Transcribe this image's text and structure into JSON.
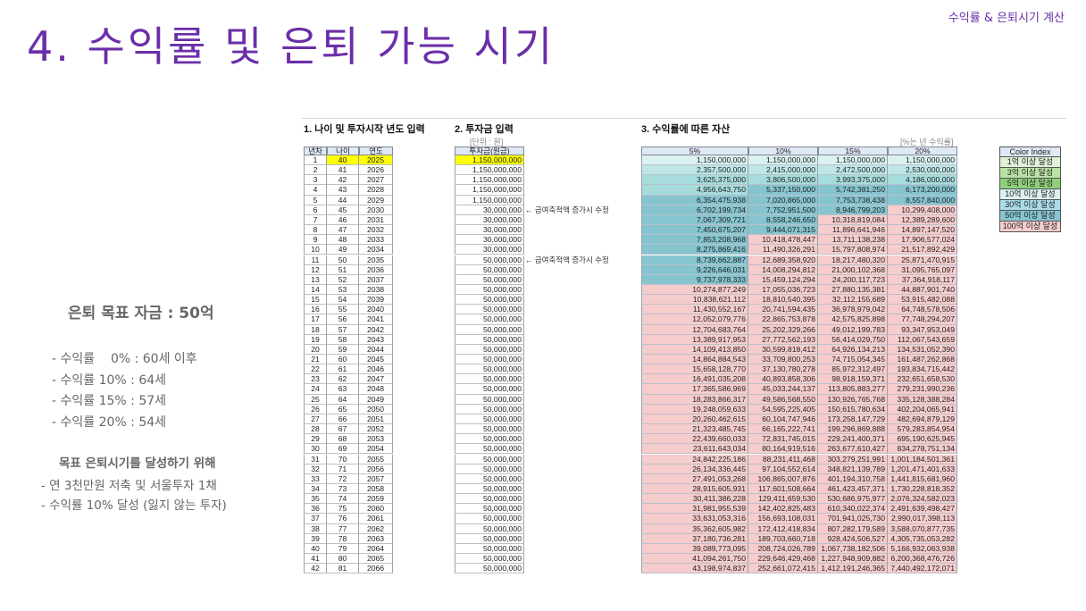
{
  "slide": {
    "title": "4. 수익률 및 은퇴 가능 시기",
    "top_label": "수익률 & 은퇴시기 계산"
  },
  "notes": {
    "goal_title": "은퇴 목표 자금 : 50억",
    "rates": [
      "- 수익률    0% : 60세 이후",
      "- 수익률 10% : 64세",
      "- 수익률 15% : 57세",
      "- 수익률 20% : 54세"
    ],
    "plan_title": "목표 은퇴시기를 달성하기 위해",
    "plan_items": [
      "- 연 3천만원 저축 및 서울투자 1채",
      "- 수익률 10% 달성 (잃지 않는 투자)"
    ]
  },
  "sheet": {
    "section1": "1. 나이 및 투자시작 년도 입력",
    "section2": "2. 투자금 입력",
    "section3": "3. 수익률에 따른 자산",
    "unit_note": "[단위 : 원]",
    "rate_note": "[%는 년 수익률]",
    "col_headers": [
      "년차",
      "나이",
      "연도",
      "투자금(원금)",
      "5%",
      "10%",
      "15%",
      "20%"
    ],
    "arrow_notes": [
      {
        "row": 5,
        "text": "← 급여축적액 증가시 수정"
      },
      {
        "row": 10,
        "text": "← 급여축적액 증가시 수정"
      }
    ],
    "colors": {
      "start": "#ffff00",
      "c1": "#dcf1f1",
      "c3": "#bfe6e6",
      "c5": "#a7dcdc",
      "c10": "#8fd1d6",
      "c30": "#a9dcea",
      "c50": "#86c5d0",
      "c100": "#f6cccc"
    },
    "rows": [
      [
        "1",
        "40",
        "2025",
        "1,150,000,000",
        "1,150,000,000",
        "1,150,000,000",
        "1,150,000,000",
        "1,150,000,000"
      ],
      [
        "2",
        "41",
        "2026",
        "1,150,000,000",
        "2,357,500,000",
        "2,415,000,000",
        "2,472,500,000",
        "2,530,000,000"
      ],
      [
        "3",
        "42",
        "2027",
        "1,150,000,000",
        "3,625,375,000",
        "3,806,500,000",
        "3,993,375,000",
        "4,186,000,000"
      ],
      [
        "4",
        "43",
        "2028",
        "1,150,000,000",
        "4,956,643,750",
        "5,337,150,000",
        "5,742,381,250",
        "6,173,200,000"
      ],
      [
        "5",
        "44",
        "2029",
        "1,150,000,000",
        "6,354,475,938",
        "7,020,865,000",
        "7,753,738,438",
        "8,557,840,000"
      ],
      [
        "6",
        "45",
        "2030",
        "30,000,000",
        "6,702,199,734",
        "7,752,951,500",
        "8,946,799,203",
        "10,299,408,000"
      ],
      [
        "7",
        "46",
        "2031",
        "30,000,000",
        "7,067,309,721",
        "8,558,246,650",
        "10,318,819,084",
        "12,389,289,600"
      ],
      [
        "8",
        "47",
        "2032",
        "30,000,000",
        "7,450,675,207",
        "9,444,071,315",
        "11,896,641,946",
        "14,897,147,520"
      ],
      [
        "9",
        "48",
        "2033",
        "30,000,000",
        "7,853,208,968",
        "10,418,478,447",
        "13,711,138,238",
        "17,906,577,024"
      ],
      [
        "10",
        "49",
        "2034",
        "30,000,000",
        "8,275,869,416",
        "11,490,326,291",
        "15,797,808,974",
        "21,517,892,429"
      ],
      [
        "11",
        "50",
        "2035",
        "50,000,000",
        "8,739,662,887",
        "12,689,358,920",
        "18,217,480,320",
        "25,871,470,915"
      ],
      [
        "12",
        "51",
        "2036",
        "50,000,000",
        "9,226,646,031",
        "14,008,294,812",
        "21,000,102,368",
        "31,095,765,097"
      ],
      [
        "13",
        "52",
        "2037",
        "50,000,000",
        "9,737,978,333",
        "15,459,124,294",
        "24,200,117,723",
        "37,364,918,117"
      ],
      [
        "14",
        "53",
        "2038",
        "50,000,000",
        "10,274,877,249",
        "17,055,036,723",
        "27,880,135,381",
        "44,887,901,740"
      ],
      [
        "15",
        "54",
        "2039",
        "50,000,000",
        "10,838,621,112",
        "18,810,540,395",
        "32,112,155,689",
        "53,915,482,088"
      ],
      [
        "16",
        "55",
        "2040",
        "50,000,000",
        "11,430,552,167",
        "20,741,594,435",
        "36,978,979,042",
        "64,748,578,506"
      ],
      [
        "17",
        "56",
        "2041",
        "50,000,000",
        "12,052,079,776",
        "22,865,753,878",
        "42,575,825,898",
        "77,748,294,207"
      ],
      [
        "18",
        "57",
        "2042",
        "50,000,000",
        "12,704,683,764",
        "25,202,329,266",
        "49,012,199,783",
        "93,347,953,049"
      ],
      [
        "19",
        "58",
        "2043",
        "50,000,000",
        "13,389,917,953",
        "27,772,562,193",
        "56,414,029,750",
        "112,067,543,659"
      ],
      [
        "20",
        "59",
        "2044",
        "50,000,000",
        "14,109,413,850",
        "30,599,818,412",
        "64,926,134,213",
        "134,531,052,390"
      ],
      [
        "21",
        "60",
        "2045",
        "50,000,000",
        "14,864,884,543",
        "33,709,800,253",
        "74,715,054,345",
        "161,487,262,868"
      ],
      [
        "22",
        "61",
        "2046",
        "50,000,000",
        "15,658,128,770",
        "37,130,780,278",
        "85,972,312,497",
        "193,834,715,442"
      ],
      [
        "23",
        "62",
        "2047",
        "50,000,000",
        "16,491,035,208",
        "40,893,858,306",
        "98,918,159,371",
        "232,651,658,530"
      ],
      [
        "24",
        "63",
        "2048",
        "50,000,000",
        "17,365,586,969",
        "45,033,244,137",
        "113,805,883,277",
        "279,231,990,236"
      ],
      [
        "25",
        "64",
        "2049",
        "50,000,000",
        "18,283,866,317",
        "49,586,568,550",
        "130,926,765,768",
        "335,128,388,284"
      ],
      [
        "26",
        "65",
        "2050",
        "50,000,000",
        "19,248,059,633",
        "54,595,225,405",
        "150,615,780,634",
        "402,204,065,941"
      ],
      [
        "27",
        "66",
        "2051",
        "50,000,000",
        "20,260,462,615",
        "60,104,747,946",
        "173,258,147,729",
        "482,694,879,129"
      ],
      [
        "28",
        "67",
        "2052",
        "50,000,000",
        "21,323,485,745",
        "66,165,222,741",
        "199,296,869,888",
        "579,283,854,954"
      ],
      [
        "29",
        "68",
        "2053",
        "50,000,000",
        "22,439,660,033",
        "72,831,745,015",
        "229,241,400,371",
        "695,190,625,945"
      ],
      [
        "30",
        "69",
        "2054",
        "50,000,000",
        "23,611,643,034",
        "80,164,919,516",
        "263,677,610,427",
        "834,278,751,134"
      ],
      [
        "31",
        "70",
        "2055",
        "50,000,000",
        "24,842,225,186",
        "88,231,411,468",
        "303,279,251,991",
        "1,001,184,501,361"
      ],
      [
        "32",
        "71",
        "2056",
        "50,000,000",
        "26,134,336,445",
        "97,104,552,614",
        "348,821,139,789",
        "1,201,471,401,633"
      ],
      [
        "33",
        "72",
        "2057",
        "50,000,000",
        "27,491,053,268",
        "106,865,007,876",
        "401,194,310,758",
        "1,441,815,681,960"
      ],
      [
        "34",
        "73",
        "2058",
        "50,000,000",
        "28,915,605,931",
        "117,601,508,664",
        "461,423,457,371",
        "1,730,228,818,352"
      ],
      [
        "35",
        "74",
        "2059",
        "50,000,000",
        "30,411,386,228",
        "129,411,659,530",
        "530,686,975,977",
        "2,076,324,582,023"
      ],
      [
        "36",
        "75",
        "2060",
        "50,000,000",
        "31,981,955,539",
        "142,402,825,483",
        "610,340,022,374",
        "2,491,639,498,427"
      ],
      [
        "37",
        "76",
        "2061",
        "50,000,000",
        "33,631,053,316",
        "156,693,108,031",
        "701,941,025,730",
        "2,990,017,398,113"
      ],
      [
        "38",
        "77",
        "2062",
        "50,000,000",
        "35,362,605,982",
        "172,412,418,834",
        "807,282,179,589",
        "3,588,070,877,735"
      ],
      [
        "39",
        "78",
        "2063",
        "50,000,000",
        "37,180,736,281",
        "189,703,660,718",
        "928,424,506,527",
        "4,305,735,053,282"
      ],
      [
        "40",
        "79",
        "2064",
        "50,000,000",
        "39,089,773,095",
        "208,724,026,789",
        "1,067,738,182,506",
        "5,166,932,063,938"
      ],
      [
        "41",
        "80",
        "2065",
        "50,000,000",
        "41,094,261,750",
        "229,646,429,468",
        "1,227,948,909,882",
        "6,200,368,476,726"
      ],
      [
        "42",
        "81",
        "2066",
        "50,000,000",
        "43,198,974,837",
        "252,661,072,415",
        "1,412,191,246,365",
        "7,440,492,172,071"
      ]
    ],
    "color_index": {
      "header": "Color Index",
      "items": [
        {
          "label": "1억 이상 달성",
          "color": "#e0f1d6"
        },
        {
          "label": "3억 이상 달성",
          "color": "#b9e3a3"
        },
        {
          "label": "5억 이상 달성",
          "color": "#8ed07a"
        },
        {
          "label": "10억 이상 달성",
          "color": "#dcf1f1"
        },
        {
          "label": "30억 이상 달성",
          "color": "#a9dcea"
        },
        {
          "label": "50억 이상 달성",
          "color": "#86c5d0"
        },
        {
          "label": "100억 이상 달성",
          "color": "#f6cccc"
        }
      ]
    }
  }
}
